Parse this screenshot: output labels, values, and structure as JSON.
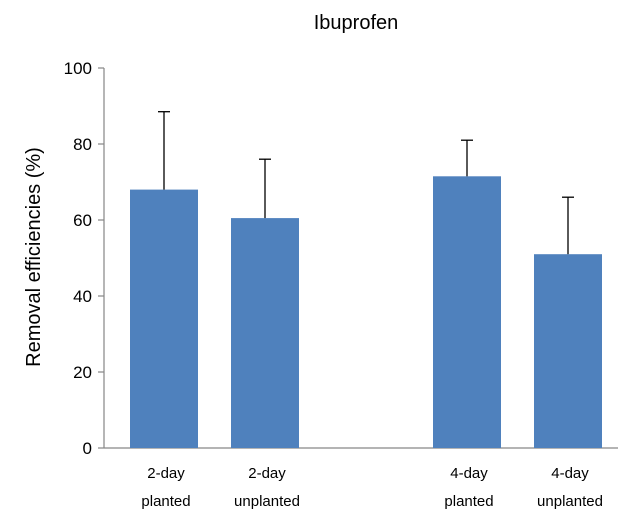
{
  "chart_data": {
    "type": "bar",
    "title": "Ibuprofen",
    "xlabel": "",
    "ylabel": "Removal efficiencies (%)",
    "ylim": [
      0,
      100
    ],
    "yticks": [
      0,
      20,
      40,
      60,
      80,
      100
    ],
    "ytick_labels": [
      "0",
      "20",
      "40",
      "60",
      "80",
      "100"
    ],
    "grid": false,
    "legend": "none",
    "color": "#4F81BD",
    "categories": [
      {
        "line1": "2-day",
        "line2": "planted",
        "gap_before": false
      },
      {
        "line1": "2-day",
        "line2": "unplanted",
        "gap_before": false
      },
      {
        "line1": "4-day",
        "line2": "planted",
        "gap_before": true
      },
      {
        "line1": "4-day",
        "line2": "unplanted",
        "gap_before": false
      }
    ],
    "values": [
      68,
      60.5,
      71.5,
      51
    ],
    "errors": [
      20.5,
      15.5,
      9.5,
      15
    ]
  }
}
